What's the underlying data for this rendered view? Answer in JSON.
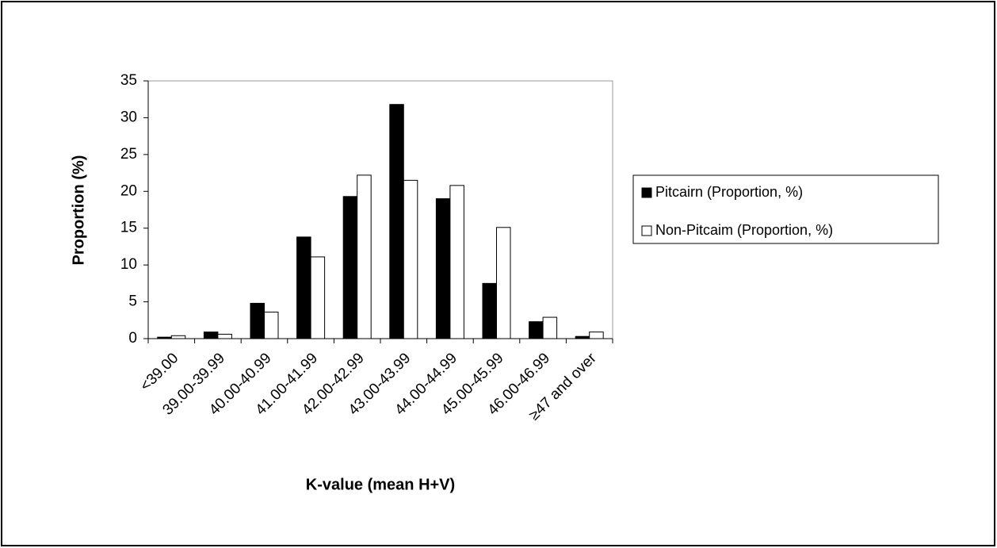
{
  "chart_data": {
    "type": "bar",
    "x_label": "K-value (mean H+V)",
    "y_label": "Proportion (%)",
    "categories": [
      "<39.00",
      "39.00-39.99",
      "40.00-40.99",
      "41.00-41.99",
      "42.00-42.99",
      "43.00-43.99",
      "44.00-44.99",
      "45.00-45.99",
      "46.00-46.99",
      "≥47 and over"
    ],
    "series": [
      {
        "name": "Pitcairn (Proportion, %)",
        "color": "#000000",
        "values": [
          0.2,
          0.9,
          4.8,
          13.8,
          19.3,
          31.8,
          19.0,
          7.5,
          2.3,
          0.3
        ]
      },
      {
        "name": "Non-Pitcaim (Proportion, %)",
        "color": "#ffffff",
        "values": [
          0.4,
          0.6,
          3.6,
          11.1,
          22.2,
          21.5,
          20.8,
          15.1,
          2.9,
          0.9
        ]
      }
    ],
    "ylim": [
      0,
      35
    ],
    "yticks": [
      0,
      5,
      10,
      15,
      20,
      25,
      30,
      35
    ],
    "grid": false,
    "legend": "right"
  }
}
